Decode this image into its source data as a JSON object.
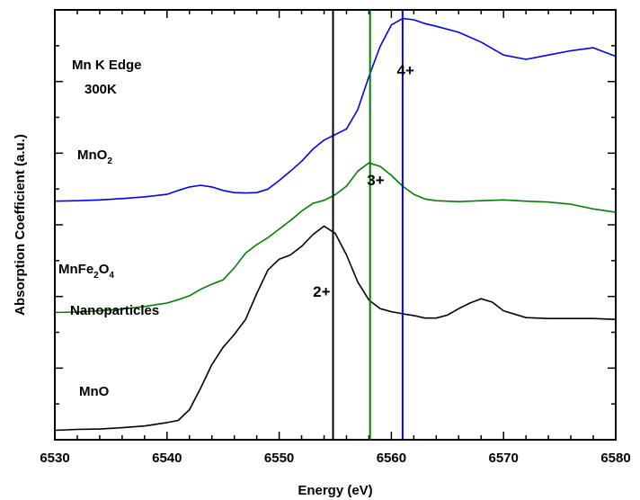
{
  "chart_data": {
    "type": "line",
    "title": "",
    "xlabel": "Energy (eV)",
    "ylabel": "Absorption Coefficient (a.u.)",
    "xlim": [
      6530,
      6580
    ],
    "ylim": [
      0,
      1
    ],
    "x_ticks": [
      6530,
      6540,
      6550,
      6560,
      6570,
      6580
    ],
    "y_ticks_labeled": false,
    "grid": false,
    "annotations": {
      "edge_title": "Mn K Edge",
      "temperature": "300K",
      "nanoparticles": "Nanoparticles",
      "mno_label": "MnO"
    },
    "series": [
      {
        "color": "#0000ff",
        "x": [
          6530,
          6532,
          6534,
          6536,
          6538,
          6540,
          6541,
          6542,
          6543,
          6544,
          6545,
          6546,
          6547,
          6548,
          6549,
          6550,
          6551,
          6552,
          6553,
          6554,
          6555,
          6556,
          6557,
          6558,
          6559,
          6560,
          6561,
          6562,
          6563,
          6564,
          6566,
          6568,
          6570,
          6572,
          6574,
          6576,
          6578,
          6580
        ],
        "y": [
          0.555,
          0.556,
          0.558,
          0.561,
          0.565,
          0.571,
          0.58,
          0.588,
          0.592,
          0.588,
          0.58,
          0.575,
          0.574,
          0.575,
          0.583,
          0.603,
          0.625,
          0.648,
          0.676,
          0.697,
          0.71,
          0.723,
          0.768,
          0.845,
          0.915,
          0.965,
          0.98,
          0.977,
          0.968,
          0.962,
          0.948,
          0.925,
          0.895,
          0.885,
          0.895,
          0.905,
          0.912,
          0.892
        ]
      },
      {
        "color": "#008000",
        "x": [
          6530,
          6532,
          6534,
          6536,
          6538,
          6540,
          6541,
          6542,
          6543,
          6544,
          6545,
          6546,
          6547,
          6548,
          6549,
          6550,
          6551,
          6552,
          6553,
          6554,
          6555,
          6556,
          6557,
          6558,
          6559,
          6560,
          6561,
          6562,
          6563,
          6564,
          6566,
          6568,
          6570,
          6572,
          6574,
          6576,
          6578,
          6580
        ],
        "y": [
          0.296,
          0.297,
          0.3,
          0.304,
          0.31,
          0.318,
          0.326,
          0.335,
          0.35,
          0.362,
          0.372,
          0.4,
          0.434,
          0.454,
          0.47,
          0.49,
          0.51,
          0.532,
          0.55,
          0.557,
          0.57,
          0.59,
          0.625,
          0.644,
          0.636,
          0.615,
          0.59,
          0.571,
          0.56,
          0.556,
          0.554,
          0.556,
          0.558,
          0.555,
          0.553,
          0.548,
          0.537,
          0.529
        ]
      },
      {
        "color": "#000000",
        "x": [
          6530,
          6532,
          6534,
          6536,
          6538,
          6540,
          6541,
          6542,
          6543,
          6544,
          6545,
          6546,
          6547,
          6548,
          6549,
          6550,
          6551,
          6552,
          6553,
          6554,
          6555,
          6556,
          6557,
          6558,
          6559,
          6560,
          6561,
          6562,
          6563,
          6564,
          6565,
          6566,
          6567,
          6568,
          6569,
          6570,
          6572,
          6574,
          6576,
          6578,
          6580
        ],
        "y": [
          0.022,
          0.024,
          0.025,
          0.028,
          0.032,
          0.04,
          0.045,
          0.07,
          0.12,
          0.175,
          0.215,
          0.245,
          0.28,
          0.34,
          0.395,
          0.42,
          0.43,
          0.45,
          0.477,
          0.497,
          0.48,
          0.43,
          0.367,
          0.325,
          0.305,
          0.298,
          0.293,
          0.289,
          0.283,
          0.283,
          0.29,
          0.305,
          0.318,
          0.328,
          0.32,
          0.3,
          0.284,
          0.282,
          0.282,
          0.282,
          0.28
        ]
      }
    ],
    "series_labels": [
      {
        "main": "MnO",
        "sub": "2",
        "color": "#000000"
      },
      {
        "main": "MnFe",
        "sub": "2",
        "main2": "O",
        "sub2": "4",
        "color": "#000000"
      }
    ],
    "vertical_lines": [
      {
        "x": 6554.8,
        "color": "#000000",
        "label": "2+"
      },
      {
        "x": 6558.1,
        "color": "#008000",
        "label": "3+"
      },
      {
        "x": 6561.0,
        "color": "#0000ff",
        "label": "4+"
      }
    ]
  }
}
